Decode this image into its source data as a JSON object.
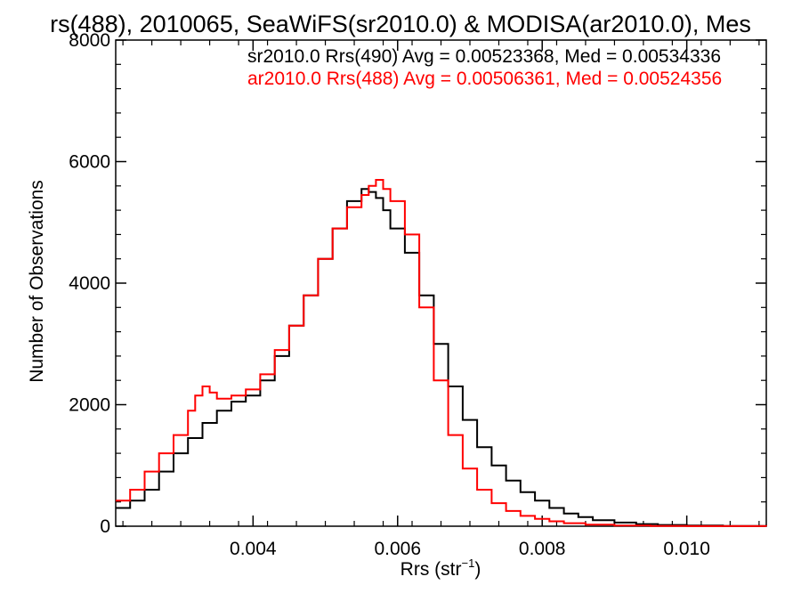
{
  "chart_data": {
    "type": "line",
    "title": "rs(488), 2010065, SeaWiFS(sr2010.0) & MODISA(ar2010.0), Mes",
    "xlabel_main": "Rrs (str",
    "xlabel_sup": "−1",
    "xlabel_close": ")",
    "ylabel": "Number of Observations",
    "xlim": [
      0.0021,
      0.0111
    ],
    "ylim": [
      0,
      8000
    ],
    "x_tick_values": [
      0.004,
      0.006,
      0.008,
      0.01
    ],
    "x_tick_labels": [
      "0.004",
      "0.006",
      "0.008",
      "0.010"
    ],
    "y_tick_values": [
      0,
      2000,
      4000,
      6000,
      8000
    ],
    "y_tick_labels": [
      "0",
      "2000",
      "4000",
      "6000",
      "8000"
    ],
    "grid": false,
    "legend_position": "top-right",
    "legend": [
      {
        "text": "sr2010.0 Rrs(490) Avg = 0.00523368, Med = 0.00534336",
        "color": "#000000"
      },
      {
        "text": "ar2010.0 Rrs(488) Avg = 0.00506361, Med = 0.00524356",
        "color": "#ff0000"
      }
    ],
    "series": [
      {
        "color": "#000000",
        "x": [
          0.0021,
          0.0023,
          0.0025,
          0.0027,
          0.0029,
          0.0031,
          0.0033,
          0.0035,
          0.0037,
          0.0039,
          0.0041,
          0.0043,
          0.0045,
          0.0047,
          0.0049,
          0.0051,
          0.0053,
          0.0055,
          0.0056,
          0.0057,
          0.0058,
          0.0059,
          0.0061,
          0.0063,
          0.0065,
          0.0067,
          0.0069,
          0.0071,
          0.0073,
          0.0075,
          0.0077,
          0.0079,
          0.0081,
          0.0083,
          0.0085,
          0.0087,
          0.009,
          0.0093,
          0.0096,
          0.01,
          0.0105,
          0.0111
        ],
        "y": [
          300,
          420,
          600,
          900,
          1200,
          1450,
          1700,
          1900,
          2050,
          2150,
          2400,
          2800,
          3300,
          3800,
          4400,
          4900,
          5350,
          5550,
          5500,
          5400,
          5200,
          4900,
          4500,
          3800,
          3000,
          2300,
          1750,
          1300,
          1000,
          750,
          560,
          420,
          300,
          210,
          150,
          100,
          60,
          35,
          20,
          10,
          5,
          0
        ]
      },
      {
        "color": "#ff0000",
        "x": [
          0.0021,
          0.0023,
          0.0025,
          0.0027,
          0.0029,
          0.0031,
          0.0032,
          0.0033,
          0.0034,
          0.0035,
          0.0037,
          0.0039,
          0.0041,
          0.0043,
          0.0045,
          0.0047,
          0.0049,
          0.0051,
          0.0053,
          0.0055,
          0.0056,
          0.0057,
          0.0058,
          0.0059,
          0.0061,
          0.0063,
          0.0065,
          0.0067,
          0.0069,
          0.0071,
          0.0073,
          0.0075,
          0.0077,
          0.0079,
          0.0081,
          0.0083,
          0.0086,
          0.009,
          0.0095,
          0.01,
          0.0111
        ],
        "y": [
          420,
          600,
          900,
          1200,
          1500,
          1900,
          2150,
          2300,
          2200,
          2100,
          2150,
          2250,
          2500,
          2900,
          3300,
          3800,
          4400,
          4900,
          5250,
          5450,
          5600,
          5700,
          5550,
          5350,
          4800,
          3600,
          2400,
          1500,
          950,
          600,
          380,
          250,
          170,
          120,
          80,
          50,
          25,
          10,
          5,
          2,
          0
        ]
      }
    ]
  }
}
